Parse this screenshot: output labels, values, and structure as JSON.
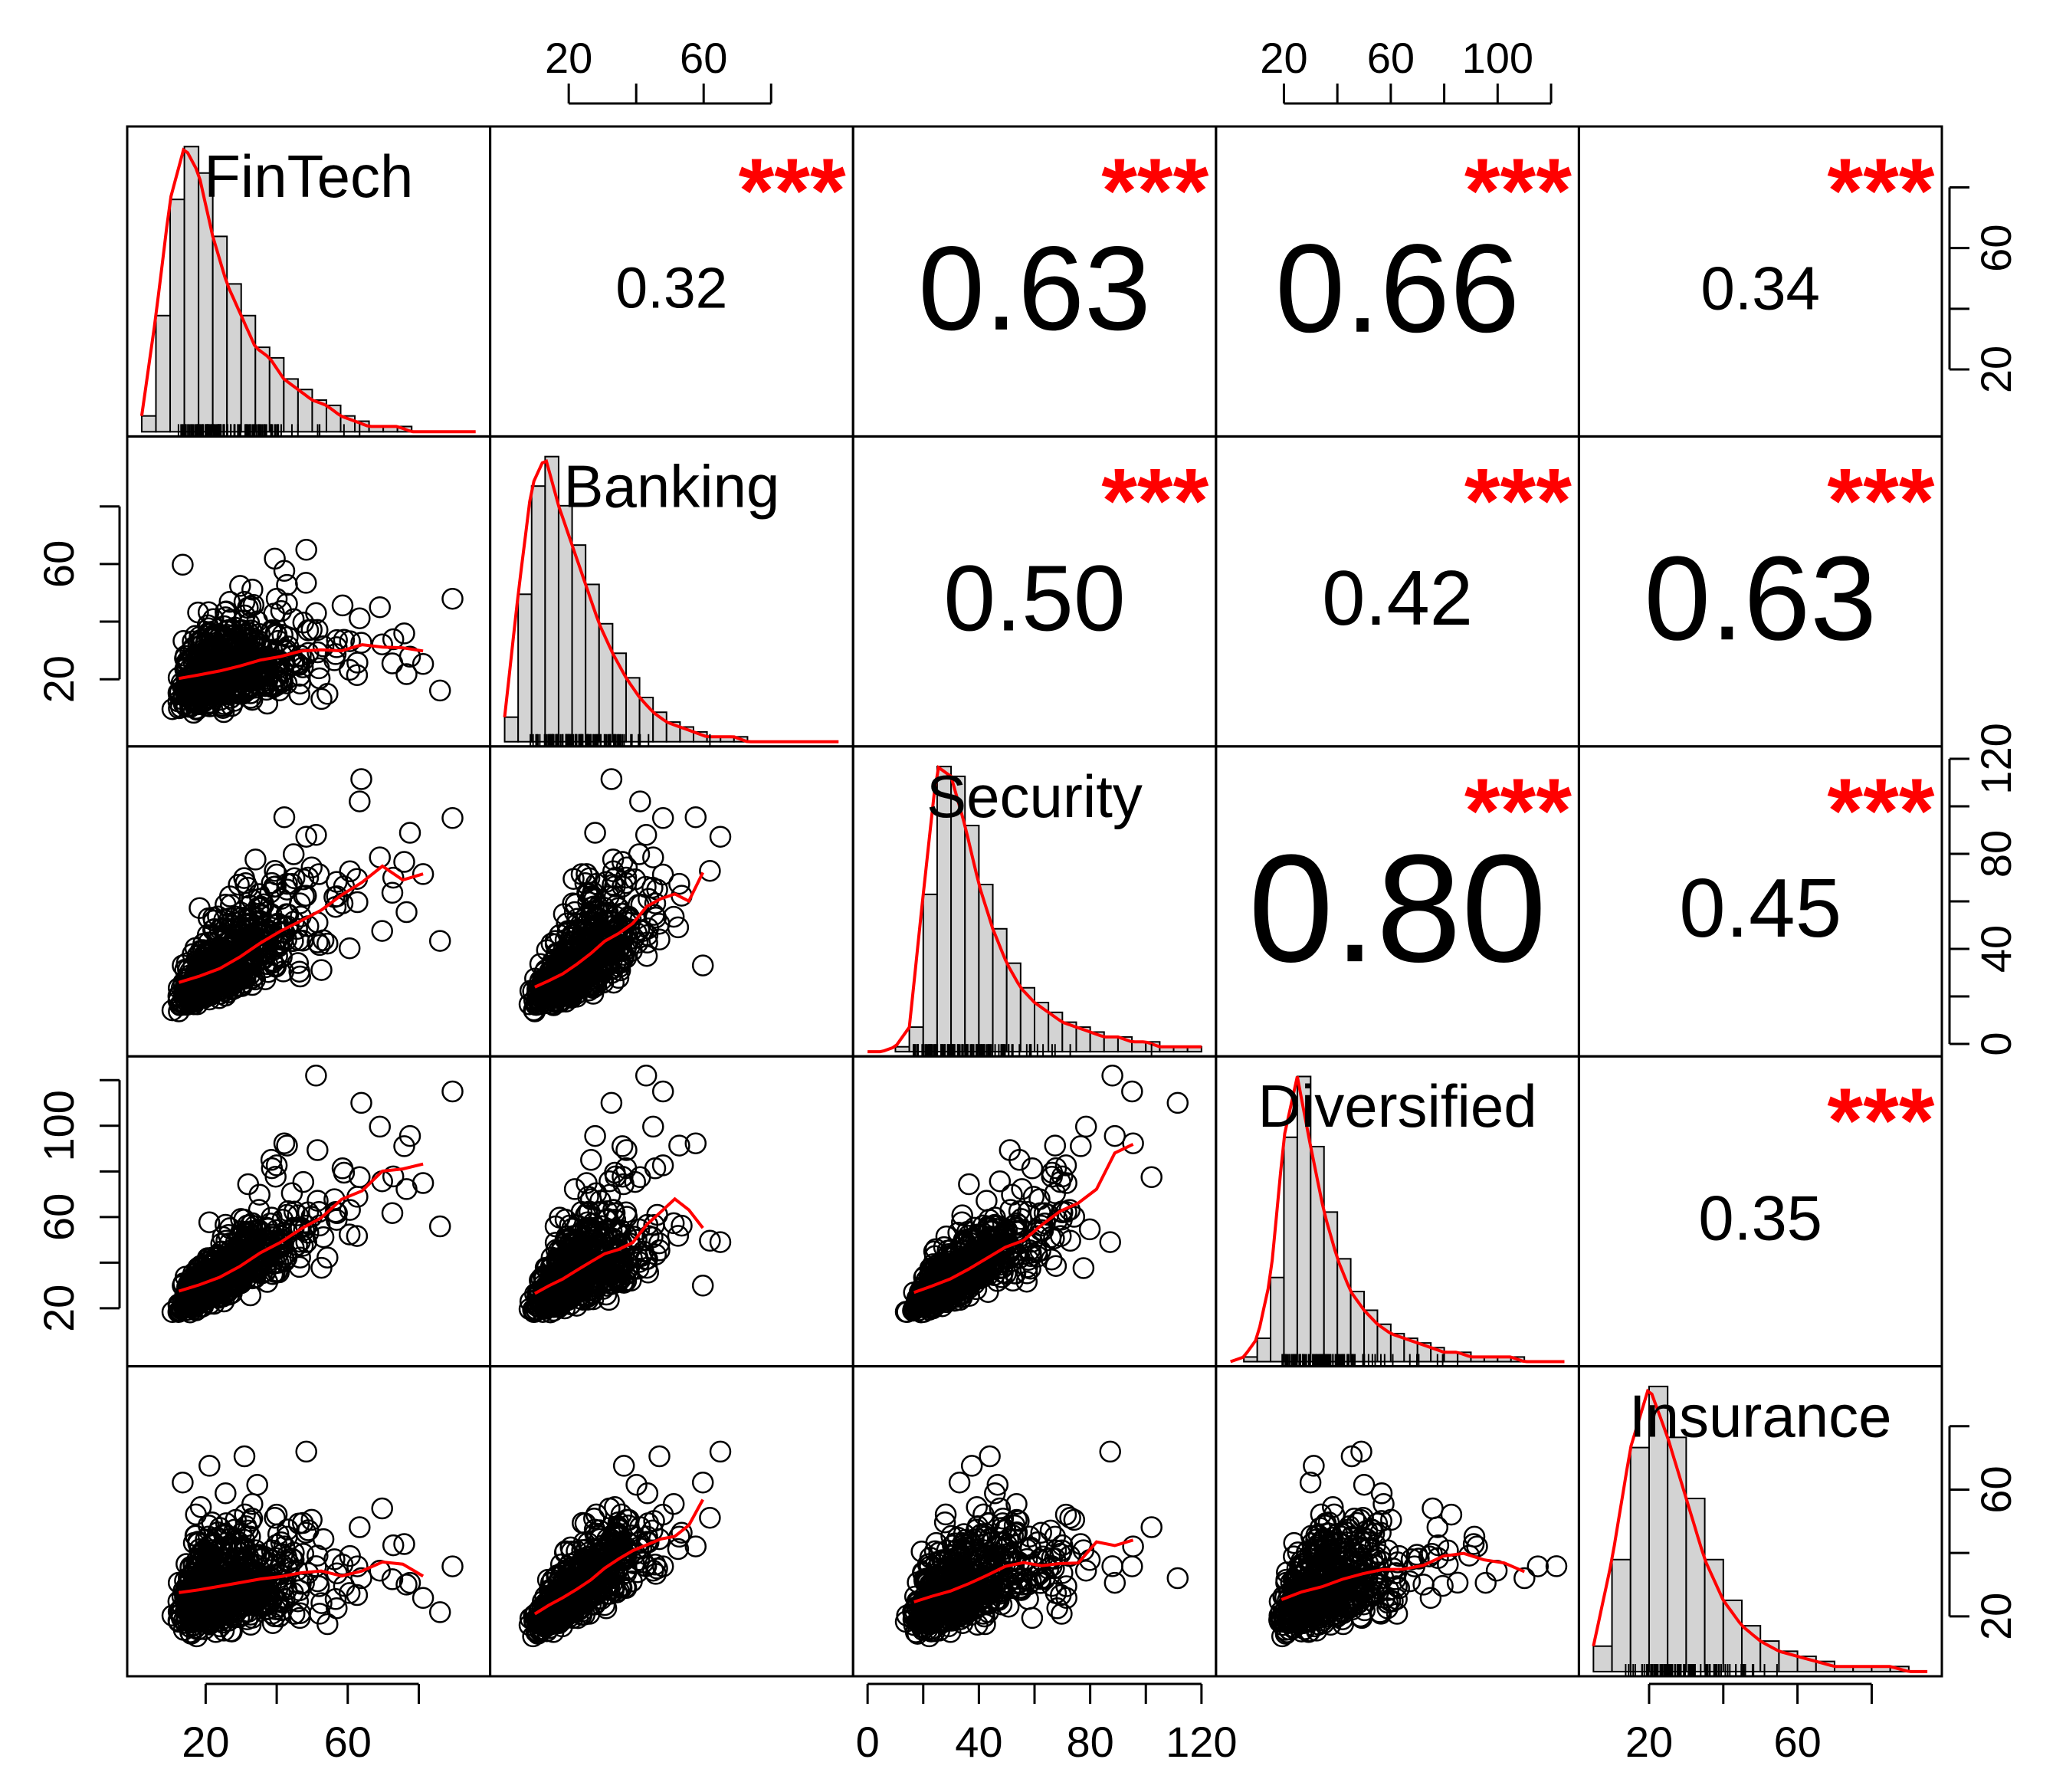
{
  "chart_data": {
    "type": "scatter-matrix",
    "title": "",
    "variables": [
      "FinTech",
      "Banking",
      "Security",
      "Diversified",
      "Insurance"
    ],
    "ranges": {
      "FinTech": [
        2,
        96
      ],
      "Banking": [
        1,
        100
      ],
      "Security": [
        0,
        120
      ],
      "Diversified": [
        0,
        125
      ],
      "Insurance": [
        5,
        95
      ]
    },
    "ticks": {
      "FinTech": [
        20,
        40,
        60,
        80
      ],
      "Banking": [
        20,
        40,
        60,
        80
      ],
      "Security": [
        0,
        20,
        40,
        60,
        80,
        100,
        120
      ],
      "Diversified": [
        20,
        40,
        60,
        80,
        100,
        120
      ],
      "Insurance": [
        20,
        40,
        60,
        80
      ]
    },
    "tick_labels": {
      "FinTech": [
        "20",
        "60"
      ],
      "Banking": [
        "20",
        "60"
      ],
      "Security": [
        "0",
        "40",
        "80",
        "120"
      ],
      "Diversified": [
        "20",
        "60",
        "100"
      ],
      "Insurance": [
        "20",
        "60"
      ]
    },
    "correlations": [
      {
        "row": 0,
        "col": 1,
        "value": "0.32",
        "stars": "***"
      },
      {
        "row": 0,
        "col": 2,
        "value": "0.63",
        "stars": "***"
      },
      {
        "row": 0,
        "col": 3,
        "value": "0.66",
        "stars": "***"
      },
      {
        "row": 0,
        "col": 4,
        "value": "0.34",
        "stars": "***"
      },
      {
        "row": 1,
        "col": 2,
        "value": "0.50",
        "stars": "***"
      },
      {
        "row": 1,
        "col": 3,
        "value": "0.42",
        "stars": "***"
      },
      {
        "row": 1,
        "col": 4,
        "value": "0.63",
        "stars": "***"
      },
      {
        "row": 2,
        "col": 3,
        "value": "0.80",
        "stars": "***"
      },
      {
        "row": 2,
        "col": 4,
        "value": "0.45",
        "stars": "***"
      },
      {
        "row": 3,
        "col": 4,
        "value": "0.35",
        "stars": "***"
      }
    ],
    "histograms": {
      "FinTech": {
        "bin_width": 4,
        "start": 2,
        "counts": [
          3,
          22,
          44,
          54,
          49,
          37,
          28,
          22,
          16,
          14,
          10,
          8,
          6,
          5,
          3,
          2,
          1,
          1,
          1,
          0,
          0,
          0,
          0
        ]
      },
      "Banking": {
        "bin_width": 4,
        "start": 1,
        "counts": [
          5,
          30,
          52,
          58,
          48,
          40,
          32,
          24,
          18,
          13,
          9,
          6,
          4,
          3,
          2,
          1,
          1,
          1,
          0,
          0,
          0,
          0,
          0,
          0,
          0
        ]
      },
      "Security": {
        "bin_width": 5,
        "start": 0,
        "counts": [
          0,
          0,
          1,
          5,
          32,
          58,
          56,
          46,
          34,
          25,
          18,
          13,
          10,
          8,
          6,
          5,
          4,
          3,
          3,
          2,
          2,
          1,
          1,
          1
        ]
      },
      "Diversified": {
        "bin_width": 5,
        "start": 0,
        "counts": [
          0,
          1,
          5,
          18,
          48,
          61,
          46,
          32,
          22,
          15,
          11,
          8,
          6,
          5,
          4,
          3,
          2,
          2,
          1,
          1,
          1,
          1,
          0,
          0,
          0
        ]
      },
      "Insurance": {
        "bin_width": 5,
        "start": 5,
        "counts": [
          5,
          22,
          44,
          56,
          46,
          34,
          22,
          14,
          9,
          6,
          4,
          3,
          2,
          1,
          1,
          1,
          1,
          0
        ]
      }
    },
    "smoother_color": "#ff0000",
    "star_color": "#ff0000",
    "point_color": "#000000",
    "bar_fill": "#d3d3d3"
  }
}
